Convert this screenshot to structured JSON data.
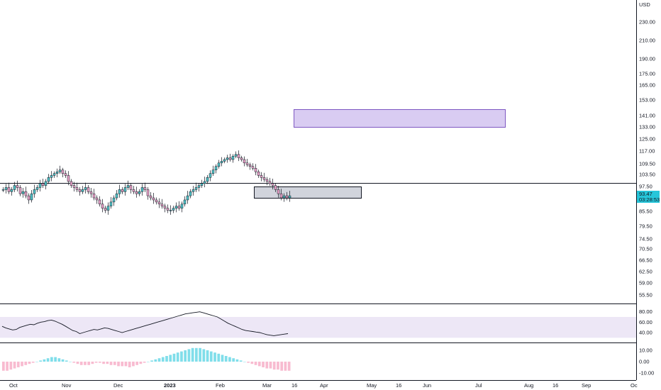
{
  "currency_label": "USD",
  "price_axis": {
    "tick_labels": [
      "230.00",
      "210.00",
      "190.00",
      "175.00",
      "165.00",
      "153.00",
      "141.00",
      "133.00",
      "125.00",
      "117.00",
      "109.50",
      "103.50",
      "97.50",
      "85.50",
      "79.50",
      "74.50",
      "70.50",
      "66.50",
      "62.50",
      "59.00",
      "55.50"
    ]
  },
  "last_price": {
    "value": "93.47",
    "countdown": "03:28:53",
    "color": "#26c6da"
  },
  "time_axis": {
    "labels": [
      {
        "text": "Oct",
        "bold": false
      },
      {
        "text": "Nov",
        "bold": false
      },
      {
        "text": "Dec",
        "bold": false
      },
      {
        "text": "2023",
        "bold": true
      },
      {
        "text": "Feb",
        "bold": false
      },
      {
        "text": "Mar",
        "bold": false
      },
      {
        "text": "16",
        "bold": false
      },
      {
        "text": "Apr",
        "bold": false
      },
      {
        "text": "May",
        "bold": false
      },
      {
        "text": "16",
        "bold": false
      },
      {
        "text": "Jun",
        "bold": false
      },
      {
        "text": "Jul",
        "bold": false
      },
      {
        "text": "Aug",
        "bold": false
      },
      {
        "text": "16",
        "bold": false
      },
      {
        "text": "Sep",
        "bold": false
      },
      {
        "text": "Oc",
        "bold": false
      }
    ]
  },
  "rsi_axis": {
    "tick_labels": [
      "80.00",
      "60.00",
      "40.00"
    ],
    "band": [
      30,
      70
    ]
  },
  "macd_axis": {
    "tick_labels": [
      "10.00",
      "0.00",
      "-10.00"
    ]
  },
  "colors": {
    "up": "#26a69a",
    "down": "#ef5350",
    "candle_up_fill": "#4fc3c7",
    "candle_down_fill": "#e8a2c8",
    "target_zone": "#d9ccf2",
    "target_zone_border": "#7e57c2",
    "support_zone": "#d1d4dc",
    "rsi_band": "#ede7f6",
    "macd_pos": "#80deea",
    "macd_neg": "#f8bbd0"
  },
  "chart_data": {
    "type": "candlestick",
    "close_series_estimated": [
      96,
      97,
      95,
      96,
      98,
      97,
      94,
      95,
      93,
      91,
      94,
      96,
      97,
      99,
      98,
      100,
      102,
      103,
      104,
      105,
      106,
      104,
      103,
      100,
      98,
      97,
      96,
      95,
      96,
      97,
      95,
      94,
      92,
      91,
      89,
      87,
      86,
      88,
      90,
      92,
      94,
      96,
      95,
      97,
      98,
      96,
      95,
      94,
      95,
      97,
      96,
      93,
      92,
      91,
      90,
      89,
      88,
      87,
      86,
      86,
      87,
      88,
      87,
      89,
      91,
      93,
      95,
      96,
      97,
      98,
      99,
      100,
      102,
      104,
      106,
      108,
      110,
      111,
      112,
      113,
      112,
      114,
      115,
      113,
      112,
      110,
      109,
      108,
      107,
      105,
      103,
      102,
      101,
      100,
      99,
      98,
      96,
      94,
      92,
      93,
      92,
      93
    ],
    "horizontal_line": 99.0,
    "target_zone": {
      "low": 135.0,
      "high": 145.5
    },
    "support_zone": {
      "low": 91.5,
      "high": 96.5
    },
    "rsi": [
      52,
      49,
      47,
      45,
      46,
      50,
      52,
      54,
      56,
      55,
      58,
      60,
      61,
      63,
      64,
      62,
      59,
      56,
      52,
      48,
      44,
      42,
      38,
      40,
      42,
      44,
      46,
      45,
      47,
      49,
      48,
      46,
      44,
      42,
      40,
      42,
      44,
      46,
      48,
      50,
      52,
      54,
      56,
      58,
      60,
      62,
      64,
      66,
      68,
      70,
      72,
      74,
      76,
      77,
      78,
      79,
      80,
      78,
      76,
      74,
      72,
      70,
      66,
      62,
      58,
      55,
      52,
      49,
      46,
      44,
      43,
      42,
      41,
      40,
      38,
      36,
      35,
      34,
      35,
      36,
      37,
      38
    ],
    "macd_hist": [
      -8,
      -8,
      -7,
      -6,
      -5,
      -4,
      -3,
      -2,
      -1,
      0,
      1,
      2,
      3,
      4,
      4,
      3,
      2,
      1,
      0,
      -1,
      -2,
      -3,
      -3,
      -3,
      -2,
      -1,
      -1,
      -2,
      -2,
      -3,
      -3,
      -4,
      -4,
      -4,
      -5,
      -4,
      -3,
      -2,
      -1,
      0,
      1,
      2,
      3,
      4,
      5,
      6,
      7,
      8,
      9,
      10,
      11,
      12,
      12,
      12,
      11,
      10,
      9,
      8,
      7,
      6,
      5,
      4,
      3,
      2,
      1,
      0,
      -1,
      -2,
      -3,
      -4,
      -5,
      -6,
      -6,
      -7,
      -7,
      -8,
      -8,
      -8
    ]
  }
}
